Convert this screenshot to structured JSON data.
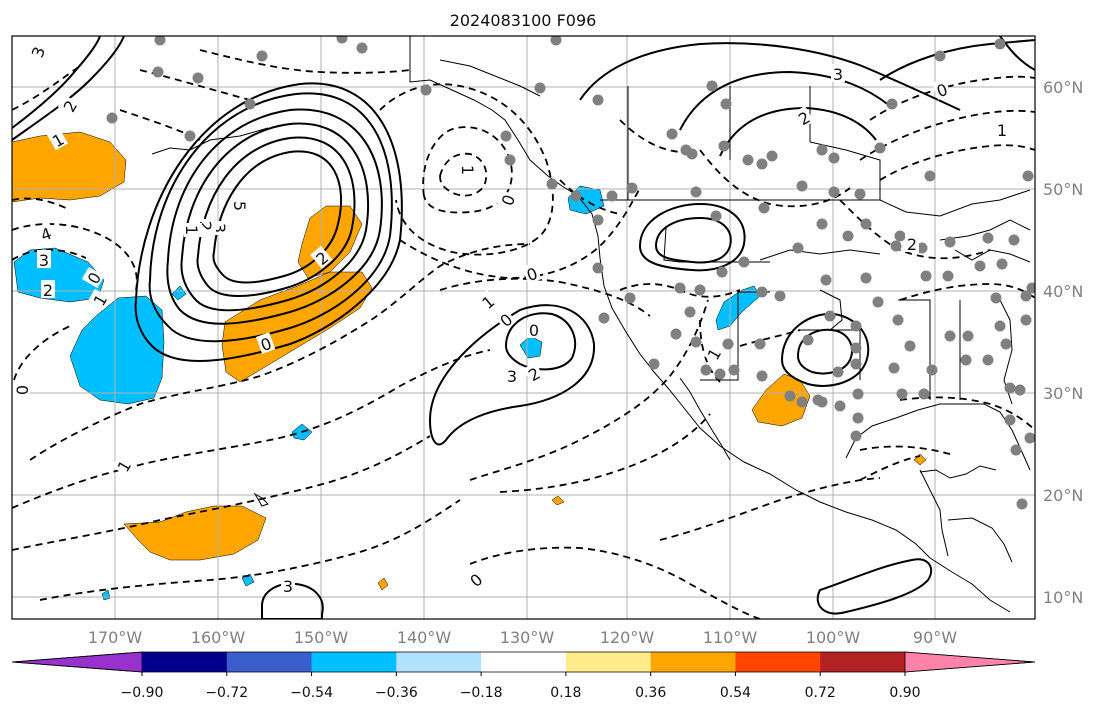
{
  "title": "2024083100 F096",
  "longitude_labels": [
    "170°W",
    "160°W",
    "150°W",
    "140°W",
    "130°W",
    "120°W",
    "110°W",
    "100°W",
    "90°W"
  ],
  "latitude_labels": [
    "60°N",
    "50°N",
    "40°N",
    "30°N",
    "20°N",
    "10°N"
  ],
  "colorbar": {
    "colors": [
      "#9932CC",
      "#00008B",
      "#3A5FCD",
      "#00BFFF",
      "#B0E2FF",
      "#FFFFFF",
      "#FFEC8B",
      "#FFA500",
      "#FF4500",
      "#B22222",
      "#FF82AB"
    ],
    "tick_labels": [
      "−0.90",
      "−0.72",
      "−0.54",
      "−0.36",
      "−0.18",
      "0.18",
      "0.36",
      "0.54",
      "0.72",
      "0.90"
    ]
  },
  "contour_labels": [
    "3",
    "2",
    "1",
    "0",
    "5",
    "3",
    "2",
    "1",
    "4",
    "3",
    "2",
    "1",
    "0",
    "0",
    "2",
    "1",
    "3",
    "0",
    "3",
    "2",
    "1",
    "0",
    "0",
    "1",
    "0",
    "3",
    "2",
    "2",
    "0",
    "1",
    "0",
    "1"
  ],
  "colors": {
    "positive_fill": "#FFA500",
    "negative_fill": "#00BFFF",
    "station_dots": "#808080",
    "contour": "#000000",
    "gridline": "#b0b0b0"
  }
}
